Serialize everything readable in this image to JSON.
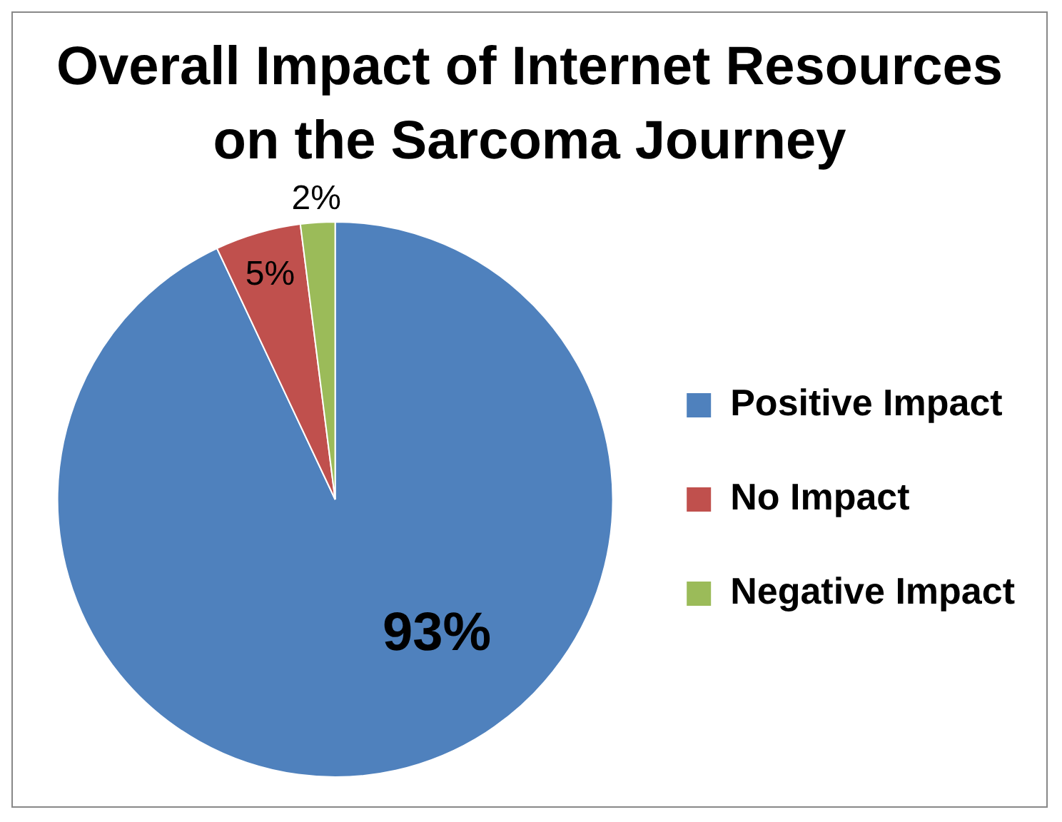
{
  "chart_data": {
    "type": "pie",
    "title": "Overall Impact of Internet Resources on the Sarcoma Journey",
    "categories": [
      "Positive Impact",
      "No Impact",
      "Negative Impact"
    ],
    "values": [
      93,
      5,
      2
    ],
    "colors": [
      "#4f81bd",
      "#c0504d",
      "#9bbb59"
    ],
    "value_labels": [
      "93%",
      "5%",
      "2%"
    ],
    "legend": "right"
  }
}
